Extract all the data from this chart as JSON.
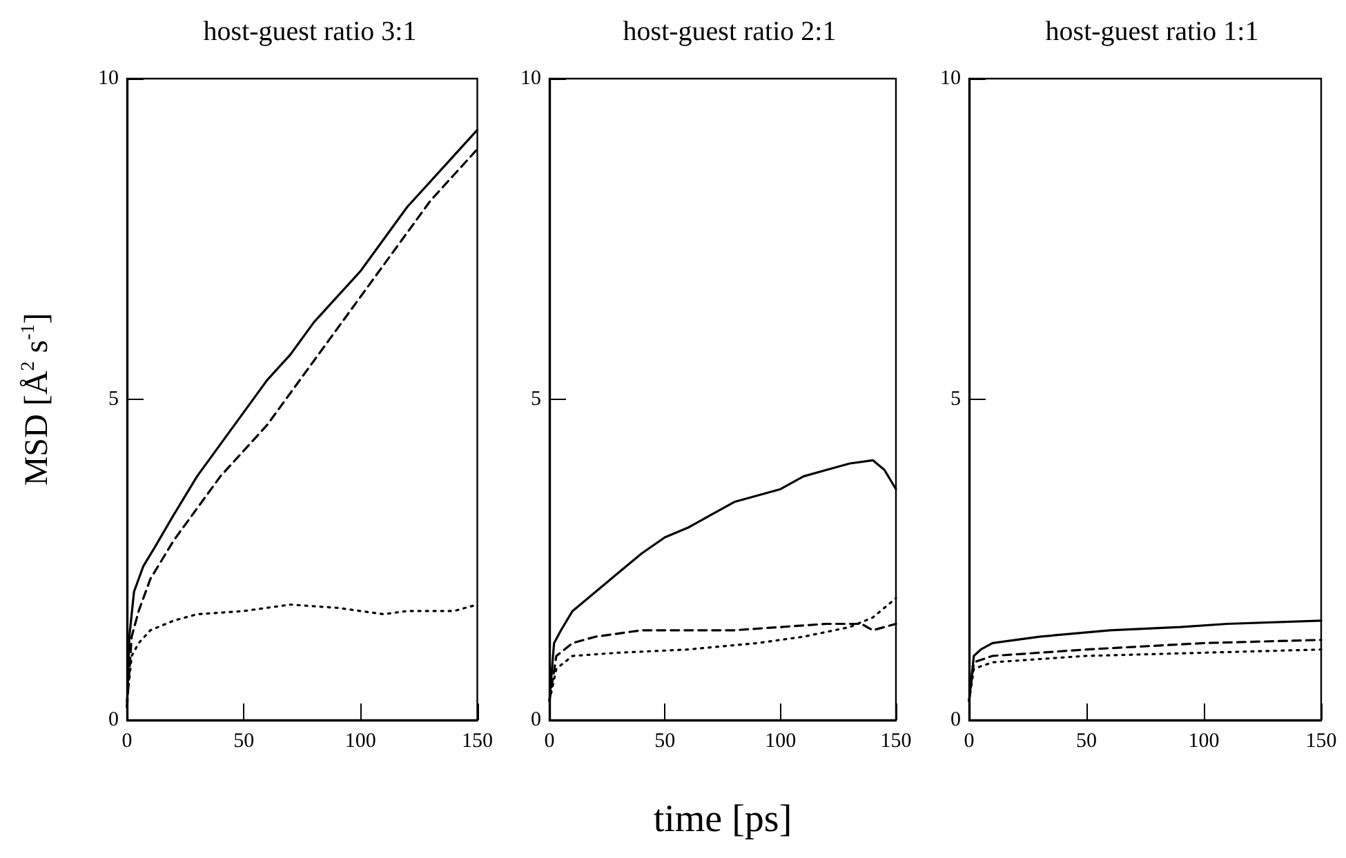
{
  "chart_data": [
    {
      "type": "line",
      "title": "host-guest ratio 3:1",
      "ylabel": "MSD [Å$^{2}$ s$^{-1}$]",
      "xlim": [
        0,
        150
      ],
      "xticks": [
        0,
        50,
        100,
        150
      ],
      "ylim": [
        0,
        10
      ],
      "yticks": [
        0,
        5,
        10
      ],
      "grid": false,
      "marker": "none",
      "series": [
        {
          "color": "#000000",
          "line_style": "solid",
          "x": [
            0,
            1,
            3,
            7,
            12,
            20,
            30,
            40,
            50,
            60,
            70,
            80,
            90,
            100,
            110,
            120,
            130,
            140,
            150
          ],
          "values": [
            0.2,
            1.3,
            2.0,
            2.4,
            2.7,
            3.2,
            3.8,
            4.3,
            4.8,
            5.3,
            5.7,
            6.2,
            6.6,
            7.0,
            7.5,
            8.0,
            8.4,
            8.8,
            9.2
          ]
        },
        {
          "color": "#000000",
          "line_style": "dashed",
          "x": [
            0,
            2,
            5,
            10,
            20,
            30,
            40,
            50,
            60,
            70,
            80,
            90,
            100,
            110,
            120,
            130,
            140,
            150
          ],
          "values": [
            0.2,
            1.3,
            1.7,
            2.2,
            2.8,
            3.3,
            3.8,
            4.2,
            4.6,
            5.1,
            5.6,
            6.1,
            6.6,
            7.1,
            7.6,
            8.1,
            8.5,
            8.9
          ]
        },
        {
          "color": "#000000",
          "line_style": "dotted",
          "x": [
            0,
            2,
            5,
            10,
            20,
            30,
            50,
            70,
            90,
            110,
            120,
            140,
            150
          ],
          "values": [
            0.3,
            1.0,
            1.2,
            1.4,
            1.55,
            1.65,
            1.7,
            1.8,
            1.75,
            1.65,
            1.7,
            1.7,
            1.8
          ]
        }
      ]
    },
    {
      "type": "line",
      "title": "host-guest ratio 2:1",
      "xlabel": "time [ps]",
      "xlim": [
        0,
        150
      ],
      "xticks": [
        0,
        50,
        100,
        150
      ],
      "ylim": [
        0,
        10
      ],
      "yticks": [
        0,
        5,
        10
      ],
      "grid": false,
      "marker": "none",
      "series": [
        {
          "color": "#000000",
          "line_style": "solid",
          "x": [
            0,
            2,
            5,
            10,
            20,
            30,
            40,
            50,
            60,
            70,
            80,
            90,
            100,
            110,
            120,
            130,
            140,
            145,
            150
          ],
          "values": [
            0.3,
            1.2,
            1.4,
            1.7,
            2.0,
            2.3,
            2.6,
            2.85,
            3.0,
            3.2,
            3.4,
            3.5,
            3.6,
            3.8,
            3.9,
            4.0,
            4.05,
            3.9,
            3.6
          ]
        },
        {
          "color": "#000000",
          "line_style": "dashed",
          "x": [
            0,
            3,
            10,
            20,
            40,
            60,
            80,
            100,
            120,
            135,
            140,
            150
          ],
          "values": [
            0.3,
            1.0,
            1.2,
            1.3,
            1.4,
            1.4,
            1.4,
            1.45,
            1.5,
            1.5,
            1.4,
            1.5
          ]
        },
        {
          "color": "#000000",
          "line_style": "dotted",
          "x": [
            0,
            3,
            10,
            30,
            60,
            90,
            110,
            130,
            140,
            150
          ],
          "values": [
            0.3,
            0.8,
            1.0,
            1.05,
            1.1,
            1.2,
            1.3,
            1.45,
            1.6,
            1.9
          ]
        }
      ]
    },
    {
      "type": "line",
      "title": "host-guest ratio 1:1",
      "xlim": [
        0,
        150
      ],
      "xticks": [
        0,
        50,
        100,
        150
      ],
      "ylim": [
        0,
        10
      ],
      "yticks": [
        0,
        5,
        10
      ],
      "grid": false,
      "marker": "none",
      "series": [
        {
          "color": "#000000",
          "line_style": "solid",
          "x": [
            0,
            2,
            5,
            10,
            30,
            60,
            90,
            110,
            150
          ],
          "values": [
            0.3,
            1.0,
            1.1,
            1.2,
            1.3,
            1.4,
            1.45,
            1.5,
            1.55
          ]
        },
        {
          "color": "#000000",
          "line_style": "dashed",
          "x": [
            0,
            2,
            10,
            50,
            100,
            150
          ],
          "values": [
            0.3,
            0.9,
            1.0,
            1.1,
            1.2,
            1.25
          ]
        },
        {
          "color": "#000000",
          "line_style": "dotted",
          "x": [
            0,
            2,
            10,
            50,
            100,
            150
          ],
          "values": [
            0.3,
            0.8,
            0.9,
            1.0,
            1.05,
            1.1
          ]
        }
      ]
    }
  ]
}
